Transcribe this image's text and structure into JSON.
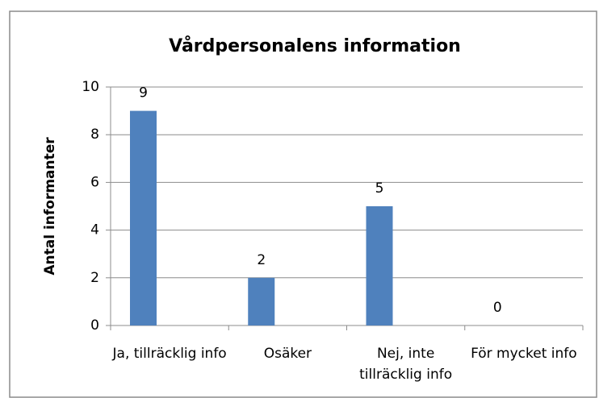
{
  "chart_data": {
    "type": "bar",
    "title": "Vårdpersonalens information",
    "y_label": "Antal informanter",
    "categories": [
      "Ja, tillräcklig info",
      "Osäker",
      "Nej, inte tillräcklig info",
      "För mycket info"
    ],
    "values": [
      9,
      2,
      5,
      0
    ],
    "color": "#4f81bd",
    "ylim": [
      0,
      10
    ],
    "yticks": [
      0,
      2,
      4,
      6,
      8,
      10
    ],
    "grid": true
  }
}
